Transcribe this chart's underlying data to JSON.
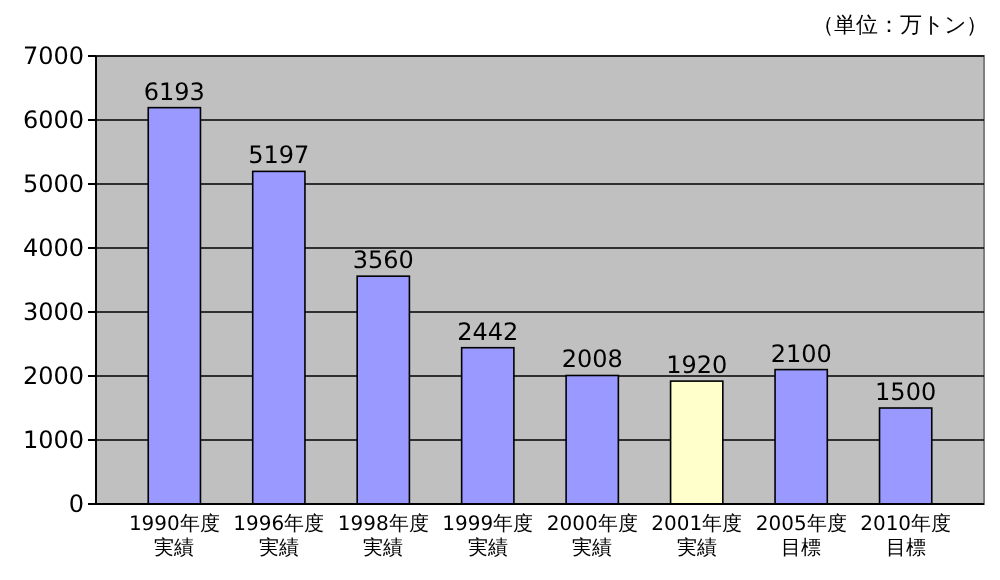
{
  "chart_data": {
    "type": "bar",
    "categories": [
      "1990年度実績",
      "1996年度実績",
      "1998年度実績",
      "1999年度実績",
      "2000年度実績",
      "2001年度実績",
      "2005年度目標",
      "2010年度目標"
    ],
    "values": [
      6193,
      5197,
      3560,
      2442,
      2008,
      1920,
      2100,
      1500
    ],
    "colors": [
      "#9999ff",
      "#9999ff",
      "#9999ff",
      "#9999ff",
      "#9999ff",
      "#ffffcc",
      "#9999ff",
      "#9999ff"
    ],
    "ylim": [
      0,
      7000
    ],
    "yticks": [
      0,
      1000,
      2000,
      3000,
      4000,
      5000,
      6000,
      7000
    ],
    "grid": "y",
    "data_labels": true,
    "annotations": [
      "（単位：万トン）"
    ]
  }
}
